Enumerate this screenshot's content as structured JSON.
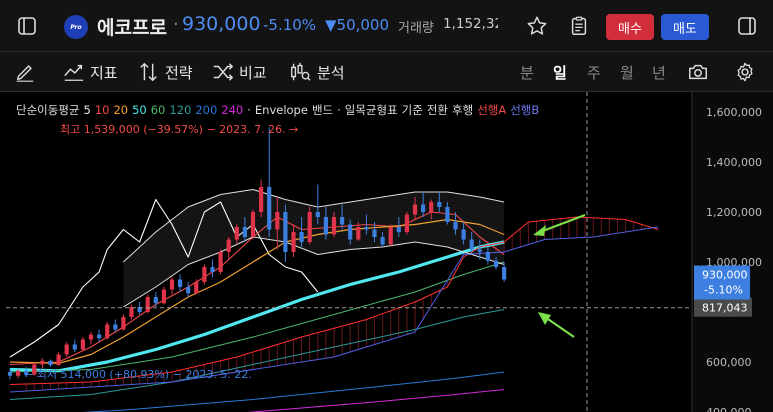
{
  "header": {
    "logo_text": "Pro",
    "stock_name": "에코프로",
    "separator": "·",
    "price": "930,000",
    "change_pct": "-5.10%",
    "change_abs": "▼50,000",
    "volume_label": "거래량",
    "volume_value": "1,152,32",
    "buy_label": "매수",
    "sell_label": "매도"
  },
  "toolbar": {
    "indicator_label": "지표",
    "strategy_label": "전략",
    "compare_label": "비교",
    "analysis_label": "분석",
    "periods": [
      "분",
      "일",
      "주",
      "월",
      "년"
    ],
    "active_period": "일"
  },
  "legend": {
    "ma_title": "단순이동평균",
    "ma_periods": [
      {
        "text": "5",
        "color": "#e6e6e6"
      },
      {
        "text": "10",
        "color": "#f04a4a"
      },
      {
        "text": "20",
        "color": "#f0a030"
      },
      {
        "text": "50",
        "color": "#4fe8f0"
      },
      {
        "text": "60",
        "color": "#4ab86a"
      },
      {
        "text": "120",
        "color": "#2a9a9a"
      },
      {
        "text": "200",
        "color": "#2a7ad8"
      },
      {
        "text": "240",
        "color": "#d02ad8"
      }
    ],
    "envelope_label": "Envelope",
    "bands_label": "밴드",
    "ichimoku_label": "일목균형표",
    "ichimoku_base": "기준",
    "ichimoku_conv": "전환",
    "ichimoku_lag": "후행",
    "span_a": "선행A",
    "span_b": "선행B",
    "high_note": "최고 1,539,000 (−39.57%) − 2023. 7. 26. →",
    "low_note": "← 최저 514,000 (+80.93%) − 2023. 5. 22."
  },
  "colors": {
    "up": "#e0344a",
    "down": "#3d7fe0",
    "accent_blue": "#4d8cf0",
    "arrow": "#7de04a"
  },
  "chart_data": {
    "type": "candlestick",
    "y_ticks": [
      400000,
      600000,
      800000,
      1000000,
      1200000,
      1400000,
      1600000
    ],
    "y_tick_labels": [
      "400,000",
      "600,000",
      "800,000",
      "1,000,000",
      "1,200,000",
      "1,400,000",
      "1,600,000"
    ],
    "ylim": [
      400000,
      1680000
    ],
    "current_price": 930000,
    "current_price_label": "930,000",
    "current_change_label": "-5.10%",
    "crosshair_price": 817043,
    "crosshair_label": "817,043",
    "high": 1539000,
    "low": 514000,
    "candles": [
      [
        560000,
        575000,
        530000,
        545000
      ],
      [
        545000,
        570000,
        535000,
        565000
      ],
      [
        565000,
        580000,
        540000,
        550000
      ],
      [
        550000,
        600000,
        545000,
        590000
      ],
      [
        590000,
        615000,
        575000,
        605000
      ],
      [
        605000,
        610000,
        580000,
        588000
      ],
      [
        588000,
        640000,
        585000,
        630000
      ],
      [
        630000,
        680000,
        620000,
        670000
      ],
      [
        670000,
        690000,
        640000,
        650000
      ],
      [
        650000,
        700000,
        645000,
        690000
      ],
      [
        690000,
        720000,
        670000,
        710000
      ],
      [
        710000,
        730000,
        680000,
        695000
      ],
      [
        695000,
        760000,
        690000,
        750000
      ],
      [
        750000,
        770000,
        720000,
        730000
      ],
      [
        730000,
        790000,
        725000,
        780000
      ],
      [
        780000,
        830000,
        770000,
        820000
      ],
      [
        820000,
        840000,
        790000,
        800000
      ],
      [
        800000,
        870000,
        795000,
        860000
      ],
      [
        860000,
        880000,
        820000,
        835000
      ],
      [
        835000,
        900000,
        830000,
        890000
      ],
      [
        890000,
        940000,
        870000,
        930000
      ],
      [
        930000,
        950000,
        880000,
        900000
      ],
      [
        900000,
        920000,
        860000,
        875000
      ],
      [
        875000,
        930000,
        870000,
        920000
      ],
      [
        920000,
        990000,
        910000,
        980000
      ],
      [
        980000,
        1010000,
        940000,
        960000
      ],
      [
        960000,
        1050000,
        950000,
        1040000
      ],
      [
        1040000,
        1100000,
        1010000,
        1090000
      ],
      [
        1090000,
        1150000,
        1070000,
        1140000
      ],
      [
        1140000,
        1180000,
        1080000,
        1100000
      ],
      [
        1100000,
        1210000,
        1090000,
        1200000
      ],
      [
        1200000,
        1330000,
        1180000,
        1300000
      ],
      [
        1300000,
        1539000,
        1100000,
        1130000
      ],
      [
        1130000,
        1260000,
        1050000,
        1200000
      ],
      [
        1200000,
        1230000,
        1000000,
        1040000
      ],
      [
        1040000,
        1150000,
        1020000,
        1120000
      ],
      [
        1120000,
        1180000,
        1060000,
        1080000
      ],
      [
        1080000,
        1220000,
        1070000,
        1200000
      ],
      [
        1200000,
        1310000,
        1150000,
        1180000
      ],
      [
        1180000,
        1220000,
        1090000,
        1110000
      ],
      [
        1110000,
        1200000,
        1100000,
        1180000
      ],
      [
        1180000,
        1230000,
        1130000,
        1150000
      ],
      [
        1150000,
        1170000,
        1070000,
        1090000
      ],
      [
        1090000,
        1160000,
        1085000,
        1140000
      ],
      [
        1140000,
        1190000,
        1110000,
        1130000
      ],
      [
        1130000,
        1160000,
        1080000,
        1100000
      ],
      [
        1100000,
        1120000,
        1060000,
        1070000
      ],
      [
        1070000,
        1150000,
        1065000,
        1140000
      ],
      [
        1140000,
        1180000,
        1100000,
        1120000
      ],
      [
        1120000,
        1200000,
        1110000,
        1190000
      ],
      [
        1190000,
        1260000,
        1170000,
        1230000
      ],
      [
        1230000,
        1280000,
        1180000,
        1200000
      ],
      [
        1200000,
        1250000,
        1170000,
        1240000
      ],
      [
        1240000,
        1280000,
        1200000,
        1220000
      ],
      [
        1220000,
        1240000,
        1150000,
        1160000
      ],
      [
        1160000,
        1200000,
        1110000,
        1130000
      ],
      [
        1130000,
        1160000,
        1070000,
        1090000
      ],
      [
        1090000,
        1120000,
        1030000,
        1050000
      ],
      [
        1050000,
        1090000,
        1010000,
        1040000
      ],
      [
        1040000,
        1060000,
        990000,
        1005000
      ],
      [
        1005000,
        1020000,
        970000,
        980000
      ],
      [
        980000,
        1000000,
        920000,
        930000
      ]
    ],
    "series": [
      {
        "color": "#ffffff",
        "width": 1.1,
        "points": [
          [
            0,
            620000
          ],
          [
            3,
            680000
          ],
          [
            6,
            750000
          ],
          [
            9,
            900000
          ],
          [
            11,
            960000
          ],
          [
            12,
            1050000
          ],
          [
            14,
            1130000
          ],
          [
            16,
            1080000
          ],
          [
            18,
            1250000
          ],
          [
            20,
            1150000
          ],
          [
            22,
            1020000
          ],
          [
            24,
            1200000
          ],
          [
            26,
            1240000
          ],
          [
            28,
            1100000
          ],
          [
            30,
            1150000
          ],
          [
            32,
            1030000
          ],
          [
            34,
            980000
          ],
          [
            36,
            960000
          ],
          [
            38,
            880000
          ]
        ]
      },
      {
        "color": "#f04a4a",
        "width": 1.1,
        "points": [
          [
            0,
            590000
          ],
          [
            6,
            600000
          ],
          [
            10,
            660000
          ],
          [
            14,
            740000
          ],
          [
            18,
            830000
          ],
          [
            22,
            900000
          ],
          [
            26,
            980000
          ],
          [
            30,
            1100000
          ],
          [
            33,
            1180000
          ],
          [
            36,
            1130000
          ],
          [
            40,
            1140000
          ],
          [
            44,
            1150000
          ],
          [
            48,
            1140000
          ],
          [
            52,
            1200000
          ],
          [
            55,
            1190000
          ],
          [
            58,
            1100000
          ],
          [
            61,
            1030000
          ]
        ]
      },
      {
        "color": "#f0a030",
        "width": 1.2,
        "points": [
          [
            0,
            600000
          ],
          [
            6,
            595000
          ],
          [
            10,
            630000
          ],
          [
            14,
            700000
          ],
          [
            18,
            780000
          ],
          [
            22,
            860000
          ],
          [
            26,
            920000
          ],
          [
            30,
            1000000
          ],
          [
            34,
            1080000
          ],
          [
            38,
            1110000
          ],
          [
            42,
            1130000
          ],
          [
            46,
            1140000
          ],
          [
            50,
            1150000
          ],
          [
            54,
            1170000
          ],
          [
            58,
            1150000
          ],
          [
            61,
            1110000
          ]
        ]
      },
      {
        "color": "#4fe8f0",
        "width": 3.2,
        "points": [
          [
            0,
            570000
          ],
          [
            6,
            565000
          ],
          [
            12,
            600000
          ],
          [
            18,
            650000
          ],
          [
            24,
            710000
          ],
          [
            30,
            780000
          ],
          [
            36,
            850000
          ],
          [
            42,
            910000
          ],
          [
            48,
            960000
          ],
          [
            54,
            1020000
          ],
          [
            58,
            1060000
          ],
          [
            61,
            1080000
          ]
        ]
      },
      {
        "color": "#4ab86a",
        "width": 1.0,
        "points": [
          [
            0,
            560000
          ],
          [
            10,
            570000
          ],
          [
            20,
            620000
          ],
          [
            30,
            700000
          ],
          [
            40,
            790000
          ],
          [
            50,
            880000
          ],
          [
            56,
            950000
          ],
          [
            61,
            1000000
          ]
        ]
      },
      {
        "color": "#2a9a9a",
        "width": 1.0,
        "points": [
          [
            0,
            450000
          ],
          [
            10,
            470000
          ],
          [
            20,
            520000
          ],
          [
            30,
            590000
          ],
          [
            40,
            660000
          ],
          [
            50,
            730000
          ],
          [
            56,
            780000
          ],
          [
            61,
            810000
          ]
        ]
      },
      {
        "color": "#2a7ad8",
        "width": 1.0,
        "points": [
          [
            0,
            380000
          ],
          [
            15,
            410000
          ],
          [
            30,
            450000
          ],
          [
            45,
            500000
          ],
          [
            55,
            535000
          ],
          [
            61,
            560000
          ]
        ]
      },
      {
        "color": "#d02ad8",
        "width": 1.0,
        "points": [
          [
            0,
            330000
          ],
          [
            15,
            360000
          ],
          [
            30,
            400000
          ],
          [
            45,
            440000
          ],
          [
            55,
            470000
          ],
          [
            61,
            490000
          ]
        ]
      },
      {
        "color": "#ff3030",
        "width": 1.0,
        "points": [
          [
            0,
            510000
          ],
          [
            10,
            520000
          ],
          [
            20,
            560000
          ],
          [
            28,
            620000
          ],
          [
            36,
            700000
          ],
          [
            44,
            770000
          ],
          [
            50,
            840000
          ],
          [
            54,
            900000
          ],
          [
            56,
            1020000
          ],
          [
            58,
            1060000
          ],
          [
            61,
            1080000
          ],
          [
            64,
            1160000
          ],
          [
            70,
            1180000
          ],
          [
            76,
            1170000
          ],
          [
            80,
            1130000
          ]
        ]
      },
      {
        "color": "#5060e0",
        "width": 1.0,
        "points": [
          [
            0,
            480000
          ],
          [
            20,
            520000
          ],
          [
            40,
            620000
          ],
          [
            50,
            720000
          ],
          [
            56,
            1030000
          ],
          [
            61,
            1040000
          ],
          [
            66,
            1090000
          ],
          [
            72,
            1100000
          ],
          [
            80,
            1140000
          ]
        ]
      },
      {
        "color": "#e0e0e0",
        "width": 1.0,
        "points": [
          [
            14,
            820000
          ],
          [
            18,
            900000
          ],
          [
            22,
            990000
          ],
          [
            26,
            1040000
          ],
          [
            30,
            1100000
          ],
          [
            34,
            1080000
          ],
          [
            38,
            1030000
          ],
          [
            42,
            1050000
          ],
          [
            46,
            1060000
          ],
          [
            50,
            1080000
          ],
          [
            54,
            1060000
          ],
          [
            58,
            1020000
          ],
          [
            61,
            990000
          ]
        ]
      },
      {
        "color": "#e0e0e0",
        "width": 1.0,
        "points": [
          [
            14,
            1000000
          ],
          [
            18,
            1120000
          ],
          [
            22,
            1220000
          ],
          [
            26,
            1270000
          ],
          [
            30,
            1290000
          ],
          [
            34,
            1250000
          ],
          [
            38,
            1220000
          ],
          [
            42,
            1240000
          ],
          [
            46,
            1260000
          ],
          [
            50,
            1280000
          ],
          [
            54,
            1280000
          ],
          [
            58,
            1260000
          ],
          [
            61,
            1240000
          ]
        ]
      }
    ],
    "annotations": [
      {
        "type": "arrow",
        "direction": "left-down",
        "target": "span_a_future"
      },
      {
        "type": "arrow",
        "direction": "left-up",
        "target": "ma120"
      }
    ]
  }
}
